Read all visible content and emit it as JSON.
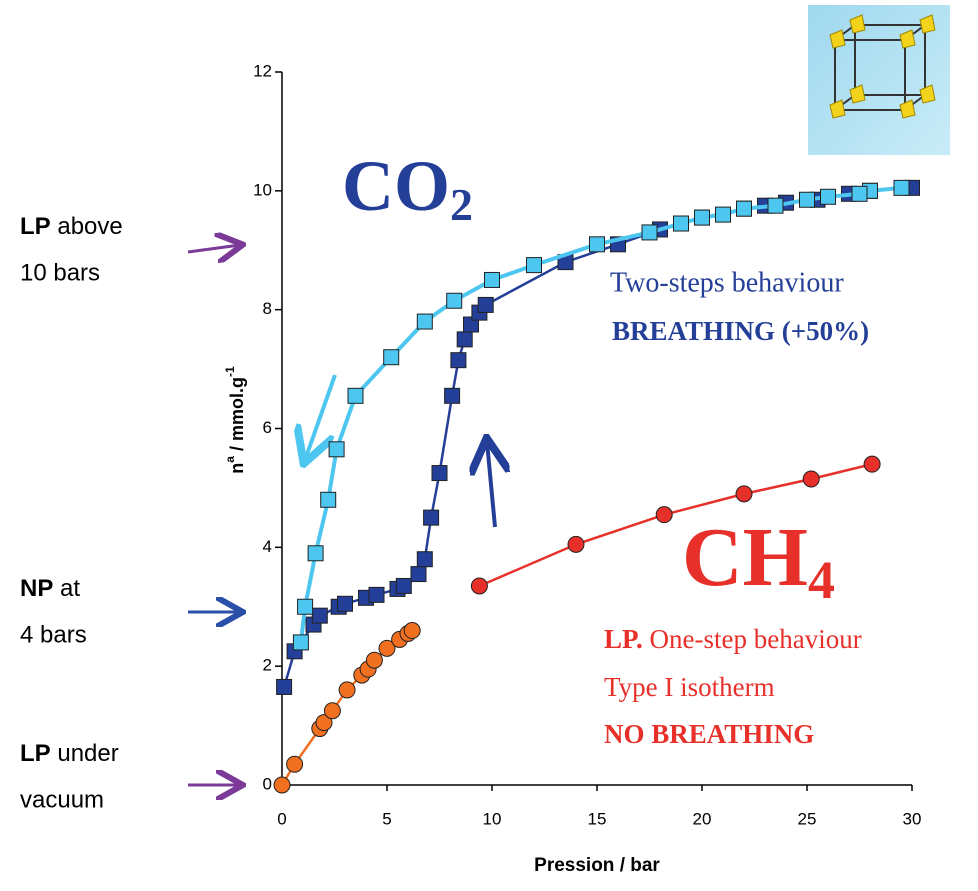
{
  "chart_data": {
    "type": "scatter",
    "xlabel": "Pression / bar",
    "ylabel": {
      "base": "n",
      "sup": "a",
      "text": " / mmol.g",
      "sup2": "-1"
    },
    "xlim": [
      0,
      30
    ],
    "ylim": [
      0,
      12
    ],
    "xticks": [
      0,
      5,
      10,
      15,
      20,
      25,
      30
    ],
    "yticks": [
      0,
      2,
      4,
      6,
      8,
      10,
      12
    ],
    "grid": false,
    "series": [
      {
        "color": "#243f98",
        "marker": "square",
        "x": [
          0.1,
          0.6,
          1.5,
          1.8,
          2.7,
          3.0,
          4.0,
          4.5,
          5.5,
          5.8,
          6.5,
          6.8,
          7.1,
          7.5,
          8.1,
          8.4,
          8.7,
          9.0,
          9.4,
          9.7,
          13.5,
          16,
          18,
          19,
          20,
          22,
          23,
          24,
          25.5,
          27,
          28,
          30
        ],
        "values": [
          1.65,
          2.25,
          2.7,
          2.85,
          3.0,
          3.05,
          3.15,
          3.2,
          3.3,
          3.35,
          3.55,
          3.8,
          4.5,
          5.25,
          6.55,
          7.15,
          7.5,
          7.75,
          7.95,
          8.08,
          8.8,
          9.1,
          9.35,
          9.45,
          9.55,
          9.7,
          9.75,
          9.8,
          9.85,
          9.95,
          10.0,
          10.05
        ]
      },
      {
        "color": "#4dc6f0",
        "marker": "square",
        "x": [
          29.5,
          28,
          27.5,
          26,
          25,
          23.5,
          22,
          21,
          20,
          19,
          17.5,
          15,
          12,
          10,
          8.2,
          6.8,
          5.2,
          3.5,
          2.6,
          2.2,
          1.6,
          1.1,
          0.9
        ],
        "values": [
          10.05,
          10.0,
          9.95,
          9.9,
          9.85,
          9.75,
          9.7,
          9.6,
          9.55,
          9.45,
          9.3,
          9.1,
          8.75,
          8.5,
          8.15,
          7.8,
          7.2,
          6.55,
          5.65,
          4.8,
          3.9,
          3.0,
          2.4
        ]
      },
      {
        "color": "#f07020",
        "marker": "circle",
        "x": [
          0,
          0.6,
          1.8,
          2.0,
          2.4,
          3.1,
          3.8,
          4.1,
          4.4,
          5.0,
          5.6,
          6.0,
          6.2
        ],
        "values": [
          0,
          0.35,
          0.95,
          1.05,
          1.25,
          1.6,
          1.85,
          1.95,
          2.1,
          2.3,
          2.45,
          2.55,
          2.6
        ]
      },
      {
        "color": "#e8302a",
        "marker": "circle",
        "x": [
          9.4,
          14,
          18.2,
          22,
          25.2,
          28.1
        ],
        "values": [
          3.35,
          4.05,
          4.55,
          4.9,
          5.15,
          5.4
        ]
      }
    ],
    "annotations": {
      "co2": {
        "text": "CO",
        "sub": "2"
      },
      "ch4": {
        "text": "CH",
        "sub": "4"
      },
      "co2_note": [
        "Two-steps  behaviour",
        "BREATHING   (+50%)"
      ],
      "ch4_note": {
        "bold": "LP.",
        "text": " One-step  behaviour",
        "line2": "Type I isotherm",
        "line3": "NO  BREATHING"
      },
      "left": [
        {
          "bold": "LP",
          "text": " above",
          "line2": "10 bars"
        },
        {
          "bold": "NP",
          "text": " at",
          "line2": "4 bars"
        },
        {
          "bold": "LP",
          "text": " under",
          "line2": "vacuum"
        }
      ]
    }
  }
}
